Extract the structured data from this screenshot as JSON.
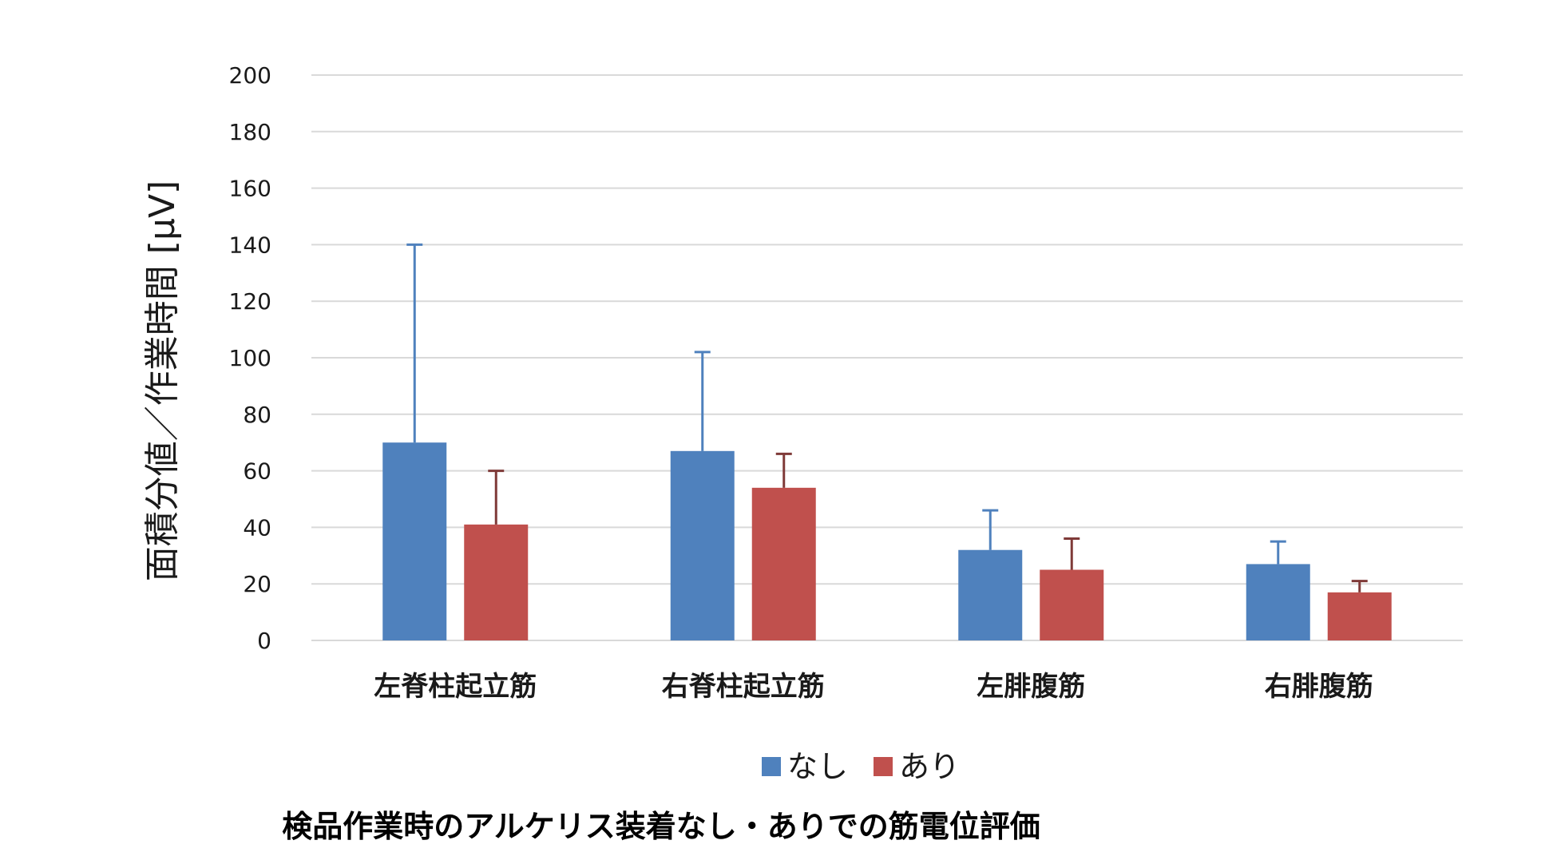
{
  "chart_data": {
    "type": "bar",
    "title": "",
    "caption": "検品作業時のアルケリス装着なし・ありでの筋電位評価",
    "xlabel": "",
    "ylabel": "面積分値／作業時間 [μV]",
    "ylim": [
      0,
      200
    ],
    "yticks": [
      0,
      20,
      40,
      60,
      80,
      100,
      120,
      140,
      160,
      180,
      200
    ],
    "grid": true,
    "legend_position": "bottom",
    "categories": [
      "左脊柱起立筋",
      "右脊柱起立筋",
      "左腓腹筋",
      "右腓腹筋"
    ],
    "series": [
      {
        "name": "なし",
        "color": "#4f81bd",
        "error_color": "#4f81bd",
        "values": [
          70,
          67,
          32,
          27
        ],
        "error_upper": [
          70,
          35,
          14,
          8
        ]
      },
      {
        "name": "あり",
        "color": "#c0504d",
        "error_color": "#7f3a38",
        "values": [
          41,
          54,
          25,
          17
        ],
        "error_upper": [
          19,
          12,
          11,
          4
        ]
      }
    ]
  }
}
